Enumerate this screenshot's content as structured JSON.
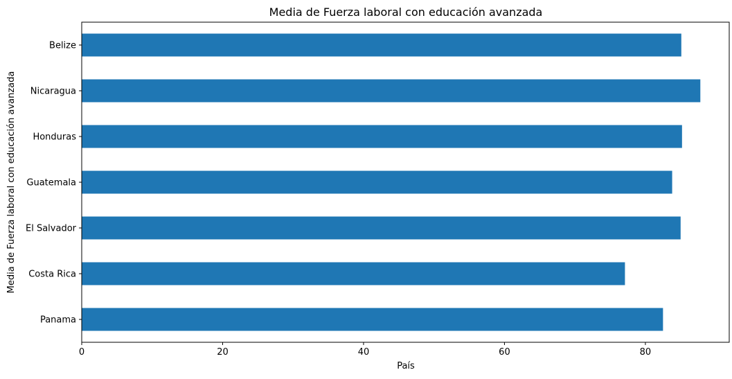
{
  "chart_data": {
    "type": "bar",
    "orientation": "horizontal",
    "title": "Media de Fuerza laboral con educación avanzada",
    "xlabel": "País",
    "ylabel": "Media de Fuerza laboral con educación avanzada",
    "categories": [
      "Panama",
      "Costa Rica",
      "El Salvador",
      "Guatemala",
      "Honduras",
      "Nicaragua",
      "Belize"
    ],
    "values": [
      82.5,
      77.1,
      85.0,
      83.8,
      85.2,
      87.8,
      85.1
    ],
    "xlim": [
      0,
      91.9
    ],
    "xticks": [
      0,
      20,
      40,
      60,
      80
    ],
    "grid": false,
    "legend": "none",
    "bar_color": "#1f77b4"
  }
}
